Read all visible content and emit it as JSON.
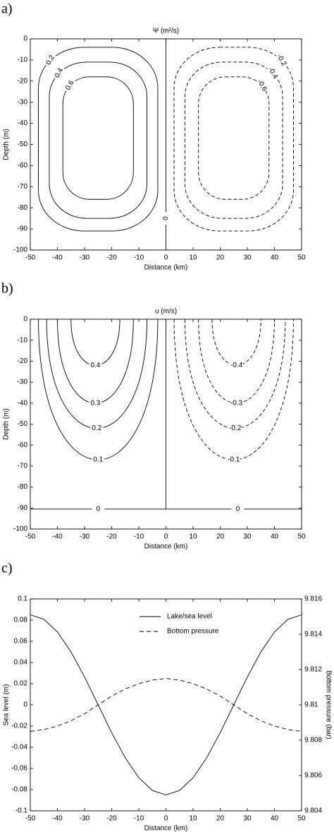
{
  "chart_data": [
    {
      "type": "contour",
      "panel": "a)",
      "title": "Ψ (m²/s)",
      "xlabel": "Distance (km)",
      "ylabel": "Depth (m)",
      "xlim": [
        -50,
        50
      ],
      "ylim": [
        -100,
        0
      ],
      "xticks": [
        -50,
        -40,
        -30,
        -20,
        -10,
        0,
        10,
        20,
        30,
        40,
        50
      ],
      "yticks": [
        -100,
        -90,
        -80,
        -70,
        -60,
        -50,
        -40,
        -30,
        -20,
        -10,
        0
      ],
      "closed": true,
      "color": "#000000",
      "contours": [
        {
          "level": 0.2,
          "x": [
            -47,
            -3
          ],
          "y": [
            -91,
            -4
          ]
        },
        {
          "level": 0.4,
          "x": [
            -43,
            -7
          ],
          "y": [
            -85,
            -11
          ]
        },
        {
          "level": 0.6,
          "x": [
            -38,
            -12
          ],
          "y": [
            -76,
            -18
          ]
        },
        {
          "level": -0.2,
          "x": [
            3,
            47
          ],
          "y": [
            -91,
            -4
          ]
        },
        {
          "level": -0.4,
          "x": [
            7,
            43
          ],
          "y": [
            -85,
            -11
          ]
        },
        {
          "level": -0.6,
          "x": [
            12,
            38
          ],
          "y": [
            -76,
            -18
          ]
        },
        {
          "level": 0,
          "x": [
            0,
            0
          ],
          "y": [
            -100,
            0
          ],
          "labeled": true
        }
      ]
    },
    {
      "type": "contour",
      "panel": "b)",
      "title": "u (m/s)",
      "xlabel": "Distance (km)",
      "ylabel": "Depth (m)",
      "xlim": [
        -50,
        50
      ],
      "ylim": [
        -100,
        0
      ],
      "xticks": [
        -50,
        -40,
        -30,
        -20,
        -10,
        0,
        10,
        20,
        30,
        40,
        50
      ],
      "yticks": [
        -100,
        -90,
        -80,
        -70,
        -60,
        -50,
        -40,
        -30,
        -20,
        -10,
        0
      ],
      "closed": false,
      "color": "#000000",
      "contours": [
        {
          "level": 0.4,
          "x": [
            -35,
            -17
          ],
          "y": [
            -22,
            0
          ]
        },
        {
          "level": 0.3,
          "x": [
            -40,
            -12
          ],
          "y": [
            -40,
            0
          ]
        },
        {
          "level": 0.2,
          "x": [
            -44,
            -7
          ],
          "y": [
            -52,
            0
          ]
        },
        {
          "level": 0.1,
          "x": [
            -47,
            -3
          ],
          "y": [
            -67,
            0
          ]
        },
        {
          "level": -0.4,
          "x": [
            17,
            35
          ],
          "y": [
            -22,
            0
          ]
        },
        {
          "level": -0.3,
          "x": [
            12,
            40
          ],
          "y": [
            -40,
            0
          ]
        },
        {
          "level": -0.2,
          "x": [
            7,
            44
          ],
          "y": [
            -52,
            0
          ]
        },
        {
          "level": -0.1,
          "x": [
            3,
            47
          ],
          "y": [
            -67,
            0
          ]
        },
        {
          "level": 0,
          "x": [
            0,
            0
          ],
          "y": [
            -90.5,
            0
          ],
          "labeled": false
        },
        {
          "level": 0,
          "x": [
            -50,
            50
          ],
          "y": [
            -90.5,
            -90.5
          ],
          "labeled": true
        }
      ]
    },
    {
      "type": "line",
      "panel": "c)",
      "xlabel": "Distance (km)",
      "ylabel": "Sea level (m)",
      "y2label": "Bottom pressure (bar)",
      "xlim": [
        -50,
        50
      ],
      "ylim": [
        -0.1,
        0.1
      ],
      "y2lim": [
        9.804,
        9.816
      ],
      "xticks": [
        -50,
        -40,
        -30,
        -20,
        -10,
        0,
        10,
        20,
        30,
        40,
        50
      ],
      "yticks": [
        -0.1,
        -0.08,
        -0.06,
        -0.04,
        -0.02,
        0,
        0.02,
        0.04,
        0.06,
        0.08,
        0.1
      ],
      "y2ticks": [
        9.804,
        9.806,
        9.808,
        9.81,
        9.812,
        9.814,
        9.816
      ],
      "x": [
        -50,
        -45,
        -40,
        -35,
        -30,
        -25,
        -20,
        -15,
        -10,
        -5,
        0,
        5,
        10,
        15,
        20,
        25,
        30,
        35,
        40,
        45,
        50
      ],
      "series": [
        {
          "name": "Lake/sea level",
          "color": "#000000",
          "linestyle": "solid",
          "values": [
            0.085,
            0.0808,
            0.0688,
            0.05,
            0.0263,
            0,
            -0.0263,
            -0.05,
            -0.0688,
            -0.0808,
            -0.085,
            -0.0808,
            -0.0688,
            -0.05,
            -0.0263,
            0,
            0.0263,
            0.05,
            0.0688,
            0.0808,
            0.085
          ]
        },
        {
          "name": "Bottom pressure",
          "color": "#000000",
          "linestyle": "dashed",
          "axis": "y2",
          "values": [
            9.8085,
            9.8086,
            9.8088,
            9.8091,
            9.8095,
            9.81,
            9.8105,
            9.8109,
            9.8112,
            9.8114,
            9.8115,
            9.8114,
            9.8112,
            9.8109,
            9.8105,
            9.81,
            9.8095,
            9.8091,
            9.8088,
            9.8086,
            9.8085
          ]
        }
      ]
    }
  ]
}
